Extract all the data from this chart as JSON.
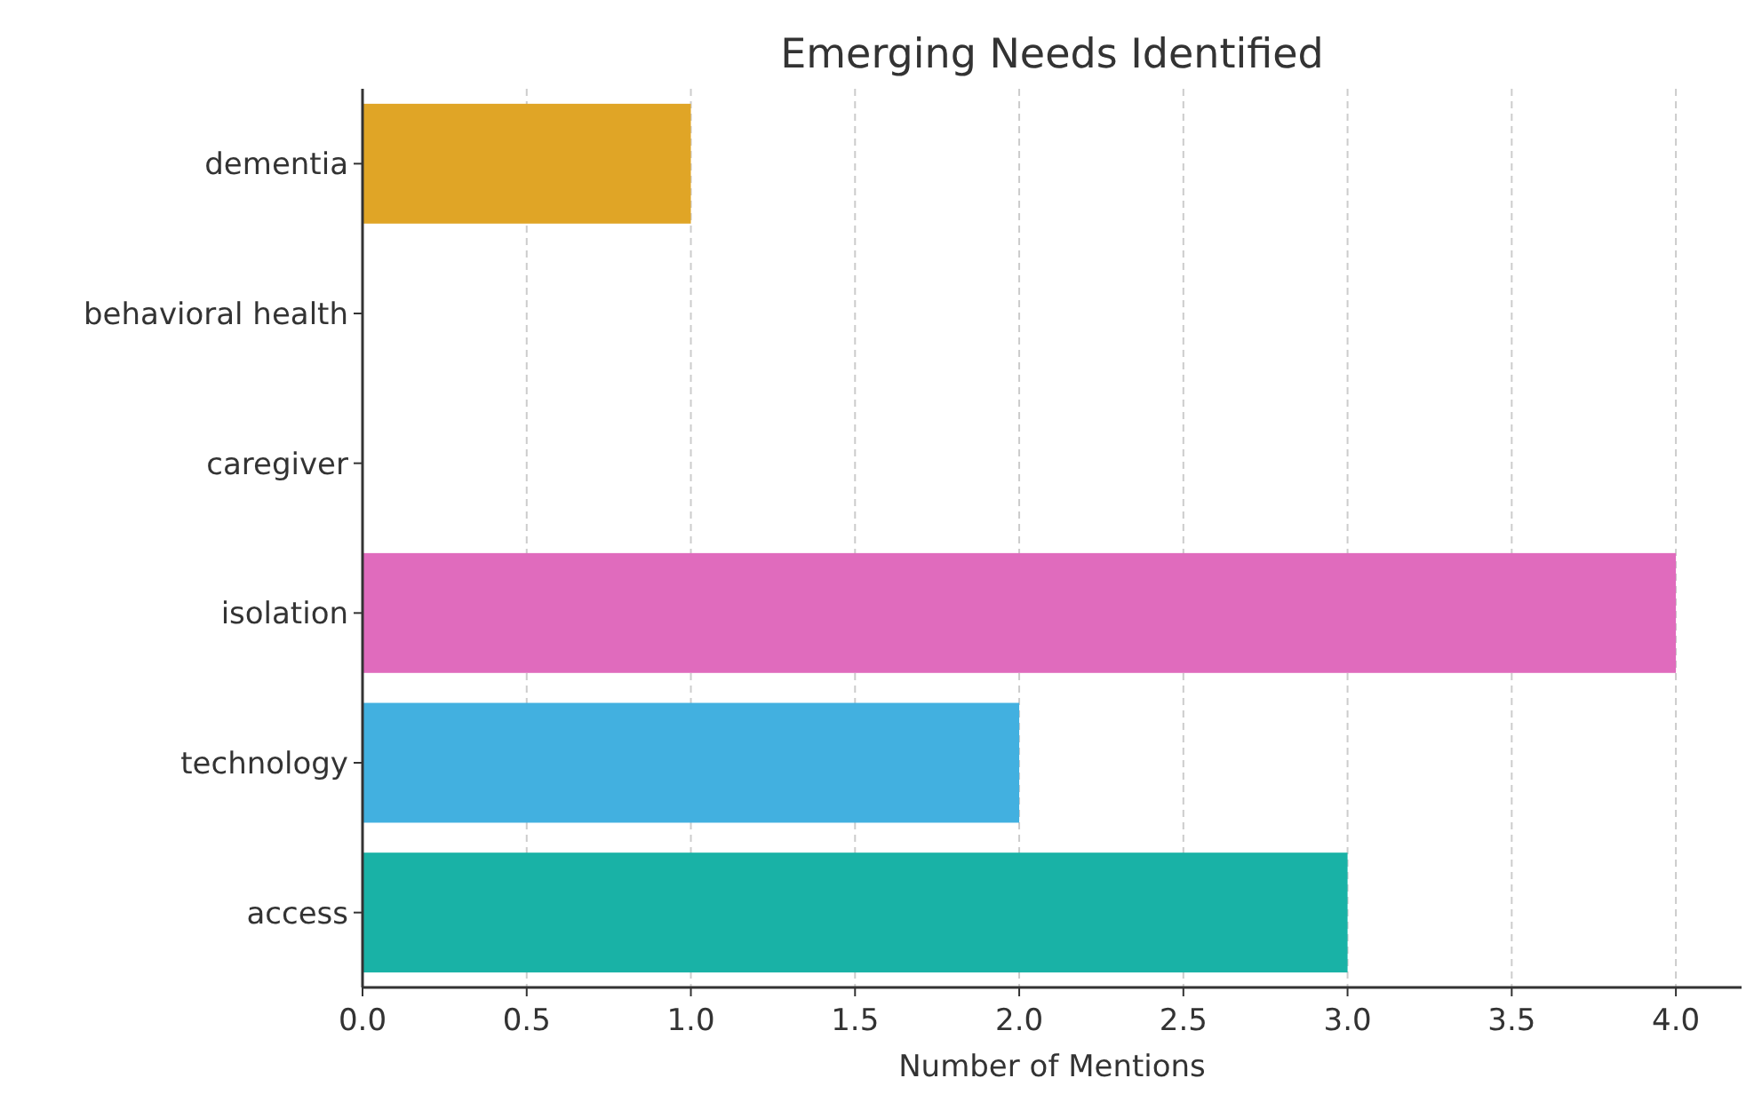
{
  "chart_data": {
    "type": "bar",
    "orientation": "horizontal",
    "title": "Emerging Needs Identified",
    "xlabel": "Number of Mentions",
    "categories": [
      "dementia",
      "behavioral health",
      "caregiver",
      "isolation",
      "technology",
      "access"
    ],
    "values": [
      1,
      0,
      0,
      4,
      2,
      3
    ],
    "colors": [
      "#e0a526",
      "#8d6bc4",
      "#e15759",
      "#e06bbd",
      "#42b0e0",
      "#19b2a6"
    ],
    "xlim": [
      0,
      4.2
    ],
    "xticks": [
      {
        "value": 0,
        "label": "0.0"
      },
      {
        "value": 0.5,
        "label": "0.5"
      },
      {
        "value": 1,
        "label": "1.0"
      },
      {
        "value": 1.5,
        "label": "1.5"
      },
      {
        "value": 2,
        "label": "2.0"
      },
      {
        "value": 2.5,
        "label": "2.5"
      },
      {
        "value": 3,
        "label": "3.0"
      },
      {
        "value": 3.5,
        "label": "3.5"
      },
      {
        "value": 4,
        "label": "4.0"
      }
    ],
    "grid": "x"
  }
}
